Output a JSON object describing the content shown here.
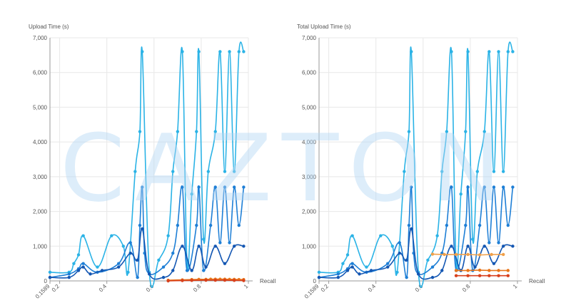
{
  "watermark": "CAZTON",
  "colors": {
    "grid": "#e8e8e8",
    "axis": "#9a9a9a",
    "label": "#555555",
    "cyan": "#2bb3e6",
    "blue": "#1e7fd6",
    "darkblue": "#1457b3",
    "lightorange": "#f0a04a",
    "orange": "#e8751a",
    "red": "#d8401c"
  },
  "chart_data": [
    {
      "type": "line",
      "title": "Upload Time (s)",
      "ylabel": "Upload Time (s)",
      "xlabel": "Recall",
      "xlim": [
        0.1589,
        1
      ],
      "ylim": [
        0,
        7000
      ],
      "yticks": [
        "0",
        "1,000",
        "2,000",
        "3,000",
        "4,000",
        "5,000",
        "6,000",
        "7,000"
      ],
      "yticks_values": [
        0,
        1000,
        2000,
        3000,
        4000,
        5000,
        6000,
        7000
      ],
      "xticks": [
        "0.1589",
        "0.2",
        "0.4",
        "0.6",
        "0.8",
        "1"
      ],
      "xticks_values": [
        0.1589,
        0.2,
        0.4,
        0.6,
        0.8,
        1
      ],
      "grid": true,
      "series": [
        {
          "color": "cyan",
          "x": [
            0.1589,
            0.24,
            0.26,
            0.28,
            0.3,
            0.36,
            0.42,
            0.47,
            0.49,
            0.52,
            0.54,
            0.55,
            0.58,
            0.62,
            0.66,
            0.68,
            0.7,
            0.72,
            0.74,
            0.76,
            0.78,
            0.79,
            0.81,
            0.83,
            0.86,
            0.88,
            0.9,
            0.92,
            0.94,
            0.96,
            0.98
          ],
          "y": [
            250,
            250,
            500,
            750,
            1300,
            400,
            1300,
            1000,
            250,
            3150,
            4300,
            6600,
            250,
            600,
            1300,
            3150,
            4300,
            6600,
            500,
            2500,
            4300,
            6600,
            1200,
            3150,
            4300,
            6600,
            3150,
            6600,
            3150,
            6600,
            6600
          ]
        },
        {
          "color": "blue",
          "x": [
            0.1589,
            0.24,
            0.28,
            0.3,
            0.36,
            0.45,
            0.5,
            0.53,
            0.54,
            0.55,
            0.56,
            0.58,
            0.64,
            0.68,
            0.7,
            0.72,
            0.74,
            0.78,
            0.79,
            0.81,
            0.84,
            0.86,
            0.88,
            0.9,
            0.92,
            0.94,
            0.96,
            0.98
          ],
          "y": [
            100,
            200,
            350,
            500,
            250,
            500,
            1100,
            100,
            1600,
            2700,
            800,
            200,
            400,
            800,
            1600,
            2700,
            300,
            1600,
            2700,
            300,
            1600,
            2700,
            1100,
            2700,
            1100,
            2700,
            1600,
            2700
          ]
        },
        {
          "color": "darkblue",
          "x": [
            0.1589,
            0.24,
            0.28,
            0.3,
            0.33,
            0.38,
            0.45,
            0.5,
            0.53,
            0.55,
            0.58,
            0.64,
            0.68,
            0.72,
            0.76,
            0.79,
            0.82,
            0.86,
            0.9,
            0.94,
            0.98
          ],
          "y": [
            100,
            100,
            300,
            400,
            200,
            300,
            400,
            800,
            600,
            1500,
            200,
            100,
            300,
            1000,
            300,
            1000,
            400,
            1000,
            500,
            1000,
            1000
          ]
        },
        {
          "color": "orange",
          "x": [
            0.66,
            0.72,
            0.76,
            0.79,
            0.82,
            0.84,
            0.86,
            0.88,
            0.9,
            0.92,
            0.94,
            0.96,
            0.98
          ],
          "y": [
            20,
            30,
            40,
            45,
            45,
            50,
            50,
            50,
            50,
            45,
            45,
            40,
            40
          ]
        },
        {
          "color": "red",
          "x": [
            0.66,
            0.72,
            0.76,
            0.82,
            0.86,
            0.9,
            0.94,
            0.98
          ],
          "y": [
            0,
            10,
            15,
            20,
            20,
            20,
            15,
            10
          ]
        }
      ]
    },
    {
      "type": "line",
      "title": "Total Upload Time (s)",
      "ylabel": "Total Upload Time (s)",
      "xlabel": "Recall",
      "xlim": [
        0.1589,
        1
      ],
      "ylim": [
        0,
        7000
      ],
      "yticks": [
        "0",
        "1,000",
        "2,000",
        "3,000",
        "4,000",
        "5,000",
        "6,000",
        "7,000"
      ],
      "yticks_values": [
        0,
        1000,
        2000,
        3000,
        4000,
        5000,
        6000,
        7000
      ],
      "xticks": [
        "0.1589",
        "0.2",
        "0.4",
        "0.6",
        "0.8",
        "1"
      ],
      "xticks_values": [
        0.1589,
        0.2,
        0.4,
        0.6,
        0.8,
        1
      ],
      "grid": true,
      "series": [
        {
          "color": "cyan",
          "x": [
            0.1589,
            0.24,
            0.26,
            0.28,
            0.3,
            0.36,
            0.42,
            0.47,
            0.49,
            0.52,
            0.54,
            0.55,
            0.58,
            0.62,
            0.66,
            0.68,
            0.7,
            0.72,
            0.74,
            0.76,
            0.78,
            0.79,
            0.81,
            0.83,
            0.86,
            0.88,
            0.9,
            0.92,
            0.94,
            0.96,
            0.98
          ],
          "y": [
            250,
            250,
            500,
            750,
            1300,
            400,
            1300,
            1000,
            250,
            3150,
            4300,
            6600,
            250,
            600,
            1300,
            3150,
            4300,
            6600,
            500,
            2500,
            4300,
            6600,
            1200,
            3150,
            4300,
            6600,
            3150,
            6600,
            3150,
            6600,
            6600
          ]
        },
        {
          "color": "blue",
          "x": [
            0.1589,
            0.24,
            0.28,
            0.3,
            0.36,
            0.45,
            0.5,
            0.53,
            0.54,
            0.55,
            0.56,
            0.58,
            0.64,
            0.68,
            0.7,
            0.72,
            0.74,
            0.78,
            0.79,
            0.81,
            0.84,
            0.86,
            0.88,
            0.9,
            0.92,
            0.94,
            0.96,
            0.98
          ],
          "y": [
            100,
            200,
            350,
            500,
            250,
            500,
            1100,
            100,
            1600,
            2700,
            800,
            200,
            400,
            800,
            1600,
            2700,
            300,
            1600,
            2700,
            300,
            1600,
            2700,
            1100,
            2700,
            1100,
            2700,
            1600,
            2700
          ]
        },
        {
          "color": "darkblue",
          "x": [
            0.1589,
            0.24,
            0.28,
            0.3,
            0.33,
            0.38,
            0.45,
            0.5,
            0.53,
            0.55,
            0.58,
            0.64,
            0.68,
            0.72,
            0.76,
            0.79,
            0.82,
            0.86,
            0.9,
            0.94,
            0.98
          ],
          "y": [
            100,
            100,
            300,
            400,
            200,
            300,
            400,
            800,
            600,
            1500,
            200,
            100,
            300,
            1000,
            300,
            1000,
            400,
            1000,
            500,
            1000,
            1000
          ]
        },
        {
          "color": "lightorange",
          "x": [
            0.64,
            0.69,
            0.74,
            0.79,
            0.84,
            0.89,
            0.94
          ],
          "y": [
            770,
            760,
            760,
            760,
            750,
            760,
            760
          ]
        },
        {
          "color": "orange",
          "x": [
            0.74,
            0.79,
            0.84,
            0.88,
            0.92,
            0.96
          ],
          "y": [
            300,
            300,
            310,
            300,
            300,
            300
          ]
        },
        {
          "color": "red",
          "x": [
            0.74,
            0.79,
            0.84,
            0.88,
            0.92,
            0.96
          ],
          "y": [
            150,
            150,
            150,
            150,
            150,
            150
          ]
        }
      ]
    }
  ]
}
